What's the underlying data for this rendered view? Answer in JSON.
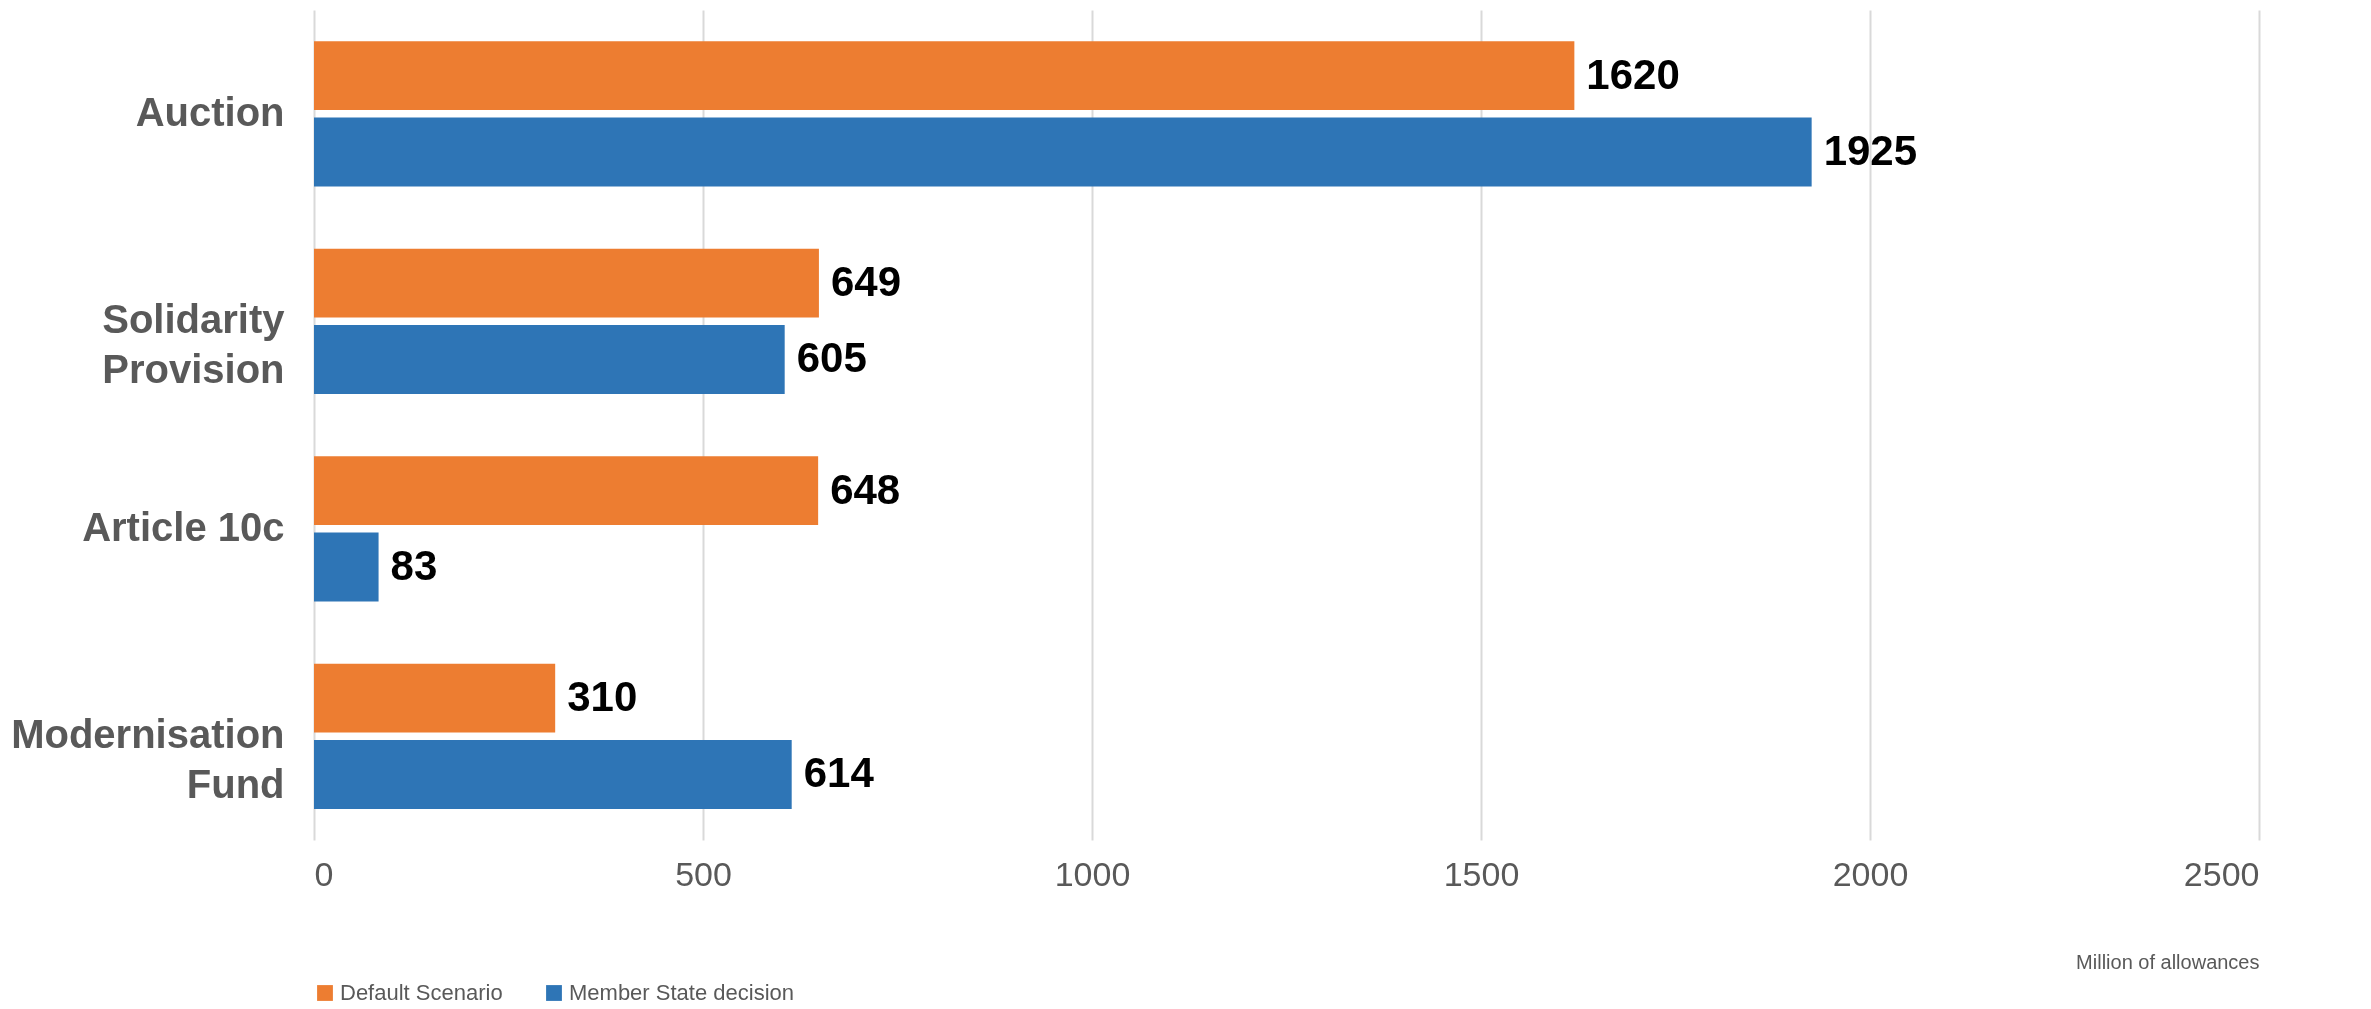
{
  "chart_data": {
    "type": "bar",
    "orientation": "horizontal",
    "categories": [
      "Auction",
      "Solidarity Provision",
      "Article 10c",
      "Modernisation Fund"
    ],
    "series": [
      {
        "name": "Default Scenario",
        "color": "#ed7d31",
        "values": [
          1620,
          649,
          648,
          310
        ]
      },
      {
        "name": "Member State decision",
        "color": "#2e75b6",
        "values": [
          1925,
          605,
          83,
          614
        ]
      }
    ],
    "xlabel": "Million of allowances",
    "xlim": [
      0,
      2500
    ],
    "xticks": [
      0,
      500,
      1000,
      1500,
      2000,
      2500
    ],
    "grid": "x",
    "legend": "bottom",
    "data_labels": true
  }
}
